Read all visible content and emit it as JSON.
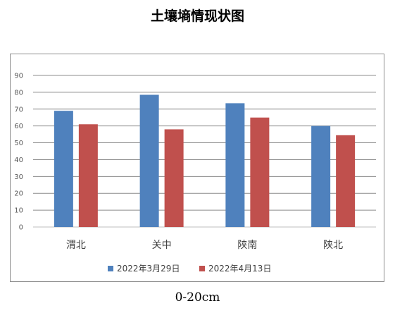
{
  "title": "土壤墒情现状图",
  "caption": "0-20cm",
  "chart_data": {
    "type": "bar",
    "categories": [
      "渭北",
      "关中",
      "陕南",
      "陕北"
    ],
    "series": [
      {
        "name": "2022年3月29日",
        "values": [
          69,
          78.5,
          73.5,
          60
        ],
        "color": "#4f81bd"
      },
      {
        "name": "2022年4月13日",
        "values": [
          61,
          58,
          65,
          54.5
        ],
        "color": "#c0504d"
      }
    ],
    "yticks": [
      "0",
      "10",
      "20",
      "30",
      "40",
      "50",
      "60",
      "70",
      "80",
      "90"
    ],
    "ylim": [
      0,
      90
    ],
    "grid": true,
    "legend": "bottom"
  }
}
